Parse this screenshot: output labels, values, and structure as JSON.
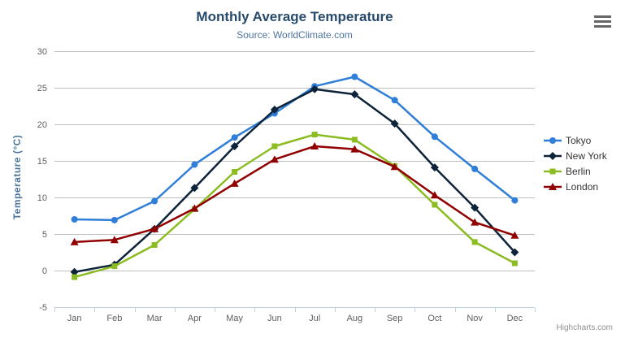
{
  "chart": {
    "credit": "Highcharts.com",
    "background": "#ffffff",
    "title_color": "#274b6d",
    "subtitle_color": "#4d759e",
    "axis_label_color": "#606060",
    "grid_color": "#c0c0c0",
    "axis_line_color": "#c0d0e0",
    "legend_text_color": "#333333",
    "burger_icon_color": "#666666"
  },
  "chart_data": {
    "type": "line",
    "title": "Monthly Average Temperature",
    "subtitle": "Source: WorldClimate.com",
    "xlabel": "",
    "ylabel": "Temperature (°C)",
    "ylim": [
      -5,
      30
    ],
    "ytick_step": 5,
    "grid": true,
    "legend_position": "right",
    "categories": [
      "Jan",
      "Feb",
      "Mar",
      "Apr",
      "May",
      "Jun",
      "Jul",
      "Aug",
      "Sep",
      "Oct",
      "Nov",
      "Dec"
    ],
    "series": [
      {
        "name": "Tokyo",
        "color": "#2f7ed8",
        "marker": "circle",
        "values": [
          7.0,
          6.9,
          9.5,
          14.5,
          18.2,
          21.5,
          25.2,
          26.5,
          23.3,
          18.3,
          13.9,
          9.6
        ]
      },
      {
        "name": "New York",
        "color": "#0d233a",
        "marker": "diamond",
        "values": [
          -0.2,
          0.8,
          5.7,
          11.3,
          17.0,
          22.0,
          24.8,
          24.1,
          20.1,
          14.1,
          8.6,
          2.5
        ]
      },
      {
        "name": "Berlin",
        "color": "#8bbc21",
        "marker": "square",
        "values": [
          -0.9,
          0.6,
          3.5,
          8.4,
          13.5,
          17.0,
          18.6,
          17.9,
          14.3,
          9.0,
          3.9,
          1.0
        ]
      },
      {
        "name": "London",
        "color": "#910000",
        "marker": "triangle",
        "values": [
          3.9,
          4.2,
          5.7,
          8.5,
          11.9,
          15.2,
          17.0,
          16.6,
          14.2,
          10.3,
          6.6,
          4.8
        ]
      }
    ]
  }
}
